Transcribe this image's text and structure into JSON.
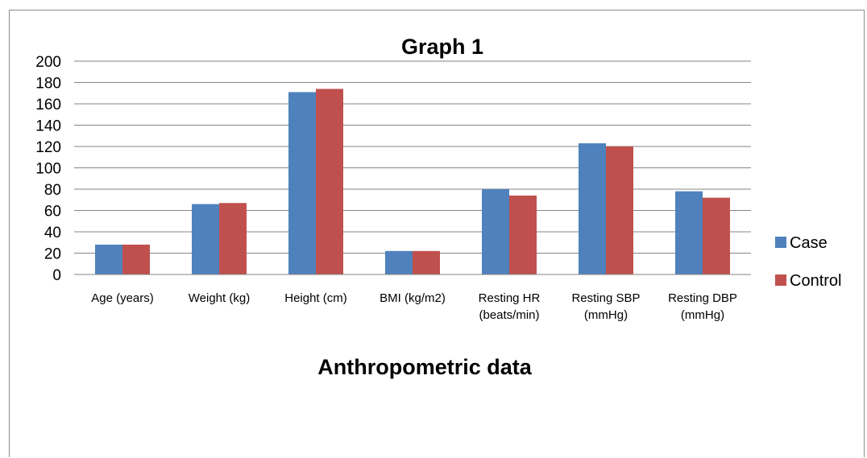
{
  "chart_data": {
    "type": "bar",
    "title": "Graph 1",
    "xlabel": "Anthropometric data",
    "ylabel": "",
    "ylim": [
      0,
      200
    ],
    "ytick_step": 20,
    "grid": true,
    "legend_position": "right",
    "categories": [
      [
        "Age (years)"
      ],
      [
        "Weight (kg)"
      ],
      [
        "Height (cm)"
      ],
      [
        "BMI (kg/m2)"
      ],
      [
        "Resting  HR",
        "(beats/min)"
      ],
      [
        "Resting SBP",
        "(mmHg)"
      ],
      [
        "Resting  DBP",
        "(mmHg)"
      ]
    ],
    "series": [
      {
        "name": "Case",
        "color": "#4f81bd",
        "values": [
          28,
          66,
          171,
          22,
          80,
          123,
          78
        ]
      },
      {
        "name": "Control",
        "color": "#c0504d",
        "values": [
          28,
          67,
          174,
          22,
          74,
          120,
          72
        ]
      }
    ]
  }
}
